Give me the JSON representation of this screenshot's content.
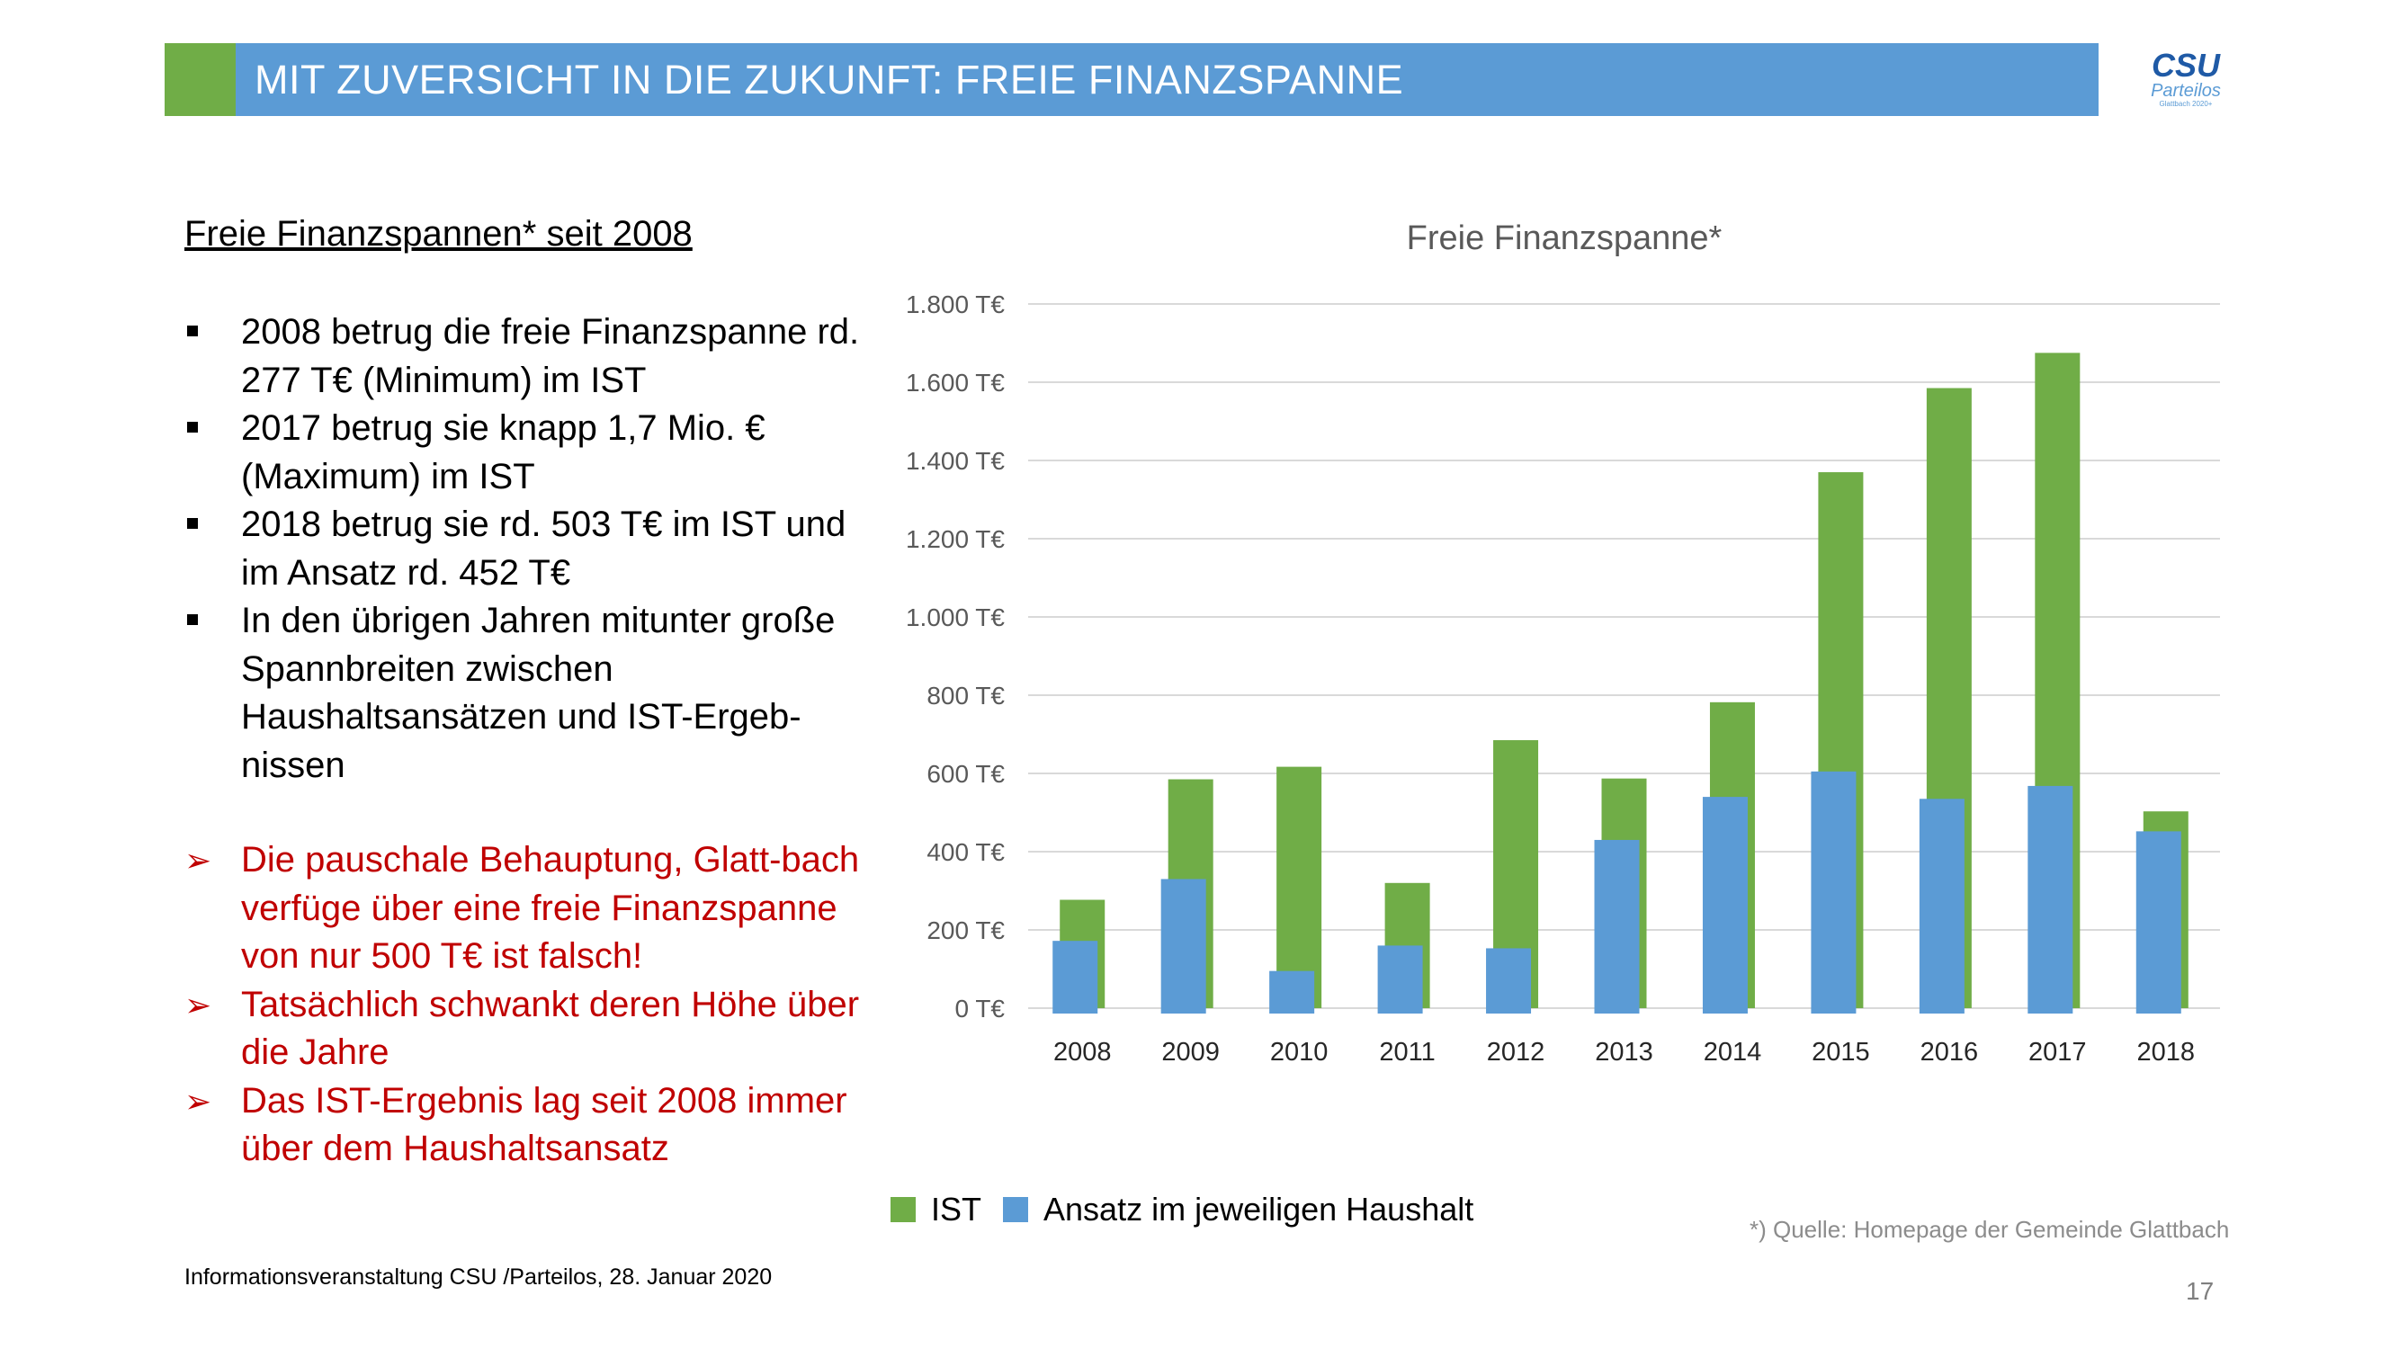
{
  "header": {
    "title": "MIT ZUVERSICHT IN DIE ZUKUNFT: FREIE FINANZSPANNE"
  },
  "logo": {
    "main": "CSU",
    "sub": "Parteilos",
    "tiny": "Glattbach 2020+"
  },
  "left": {
    "subtitle": "Freie Finanzspannen* seit 2008",
    "bullets": [
      "2008 betrug die freie Finanzspanne rd. 277 T€ (Minimum) im IST",
      "2017 betrug sie knapp 1,7 Mio. € (Maximum) im IST",
      "2018 betrug sie rd. 503 T€ im IST und im Ansatz rd. 452 T€",
      "In den übrigen Jahren mitunter große Spannbreiten zwischen Haushaltsansätzen und IST-Ergeb-nissen"
    ],
    "bullet_marker": "■",
    "arrow_marker": "➢",
    "arrows": [
      "Die pauschale Behauptung, Glatt-bach verfüge über eine freie Finanzspanne von nur 500 T€ ist falsch!",
      "Tatsächlich schwankt deren Höhe über die Jahre",
      "Das IST-Ergebnis lag seit 2008 immer über dem Haushaltsansatz"
    ]
  },
  "footer": {
    "left": "Informationsveranstaltung CSU /Parteilos, 28. Januar 2020",
    "source": "*) Quelle: Homepage der Gemeinde Glattbach",
    "page": "17"
  },
  "colors": {
    "header": "#5b9bd5",
    "accent": "#70ad47",
    "ist": "#70ad47",
    "ansatz": "#5b9bd5",
    "emphasis": "#c00000"
  },
  "chart_data": {
    "type": "bar",
    "title": "Freie Finanzspanne*",
    "categories": [
      "2008",
      "2009",
      "2010",
      "2011",
      "2012",
      "2013",
      "2014",
      "2015",
      "2016",
      "2017",
      "2018"
    ],
    "series": [
      {
        "name": "IST",
        "color": "#70ad47",
        "values": [
          277,
          585,
          617,
          320,
          685,
          587,
          782,
          1370,
          1585,
          1675,
          503
        ]
      },
      {
        "name": "Ansatz im jeweiligen Haushalt",
        "color": "#5b9bd5",
        "values": [
          172,
          330,
          95,
          160,
          153,
          430,
          540,
          605,
          535,
          568,
          452
        ]
      }
    ],
    "ylim": [
      0,
      1800
    ],
    "y_ticks": [
      0,
      200,
      400,
      600,
      800,
      1000,
      1200,
      1400,
      1600,
      1800
    ],
    "y_tick_labels": [
      "0 T€",
      "200 T€",
      "400 T€",
      "600 T€",
      "800 T€",
      "1.000 T€",
      "1.200 T€",
      "1.400 T€",
      "1.600 T€",
      "1.800 T€"
    ],
    "grid": true,
    "legend_position": "bottom-left"
  }
}
